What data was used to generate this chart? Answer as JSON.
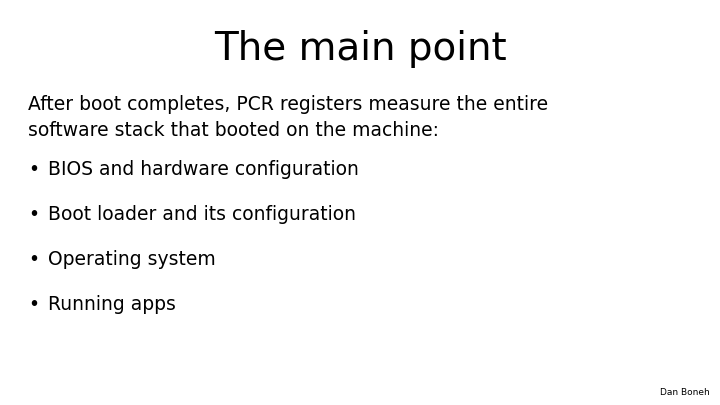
{
  "title": "The main point",
  "title_fontsize": 28,
  "background_color": "#ffffff",
  "text_color": "#000000",
  "intro_text": "After boot completes, PCR registers measure the entire\nsoftware stack that booted on the machine:",
  "intro_fontsize": 13.5,
  "bullet_items": [
    "BIOS and hardware configuration",
    "Boot loader and its configuration",
    "Operating system",
    "Running apps"
  ],
  "bullet_fontsize": 13.5,
  "watermark": "Dan Boneh",
  "watermark_fontsize": 6.5
}
